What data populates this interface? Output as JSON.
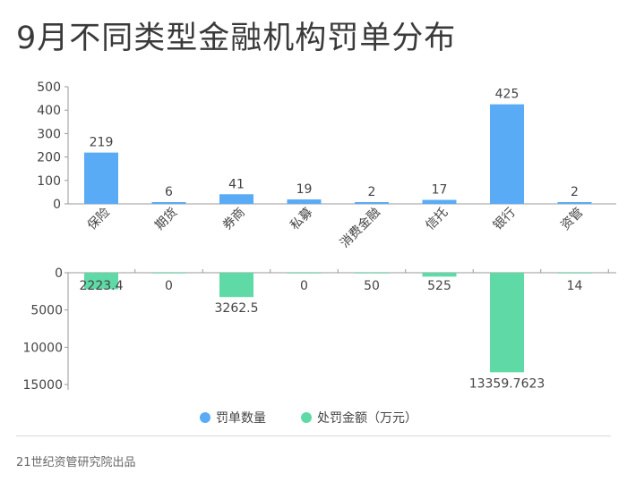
{
  "title": "9月不同类型金融机构罚单分布",
  "footer": "21世纪资管研究院出品",
  "colors": {
    "count": "#5aabf5",
    "amount": "#5fd9a6",
    "axis": "#999999",
    "text": "#444444"
  },
  "chart_data": [
    {
      "type": "bar",
      "categories": [
        "保险",
        "期货",
        "券商",
        "私募",
        "消费金融",
        "信托",
        "银行",
        "资管"
      ],
      "series": [
        {
          "name": "罚单数量",
          "values": [
            219,
            6,
            41,
            19,
            2,
            17,
            425,
            2
          ]
        }
      ],
      "ylim": [
        0,
        500
      ],
      "yticks": [
        0,
        100,
        200,
        300,
        400,
        500
      ],
      "data_labels": [
        "219",
        "6",
        "41",
        "19",
        "2",
        "17",
        "425",
        "2"
      ]
    },
    {
      "type": "bar",
      "orientation": "downward",
      "categories": [
        "保险",
        "期货",
        "券商",
        "私募",
        "消费金融",
        "信托",
        "银行",
        "资管"
      ],
      "series": [
        {
          "name": "处罚金额（万元）",
          "values": [
            2223.4,
            0,
            3262.5,
            0,
            50,
            525,
            13359.7623,
            14
          ]
        }
      ],
      "ylim": [
        0,
        15000
      ],
      "yticks": [
        0,
        5000,
        10000,
        15000
      ],
      "data_labels": [
        "2223.4",
        "0",
        "3262.5",
        "0",
        "50",
        "525",
        "13359.7623",
        "14"
      ]
    }
  ],
  "legend": [
    {
      "label": "罚单数量",
      "color": "#5aabf5"
    },
    {
      "label": "处罚金额（万元）",
      "color": "#5fd9a6"
    }
  ]
}
